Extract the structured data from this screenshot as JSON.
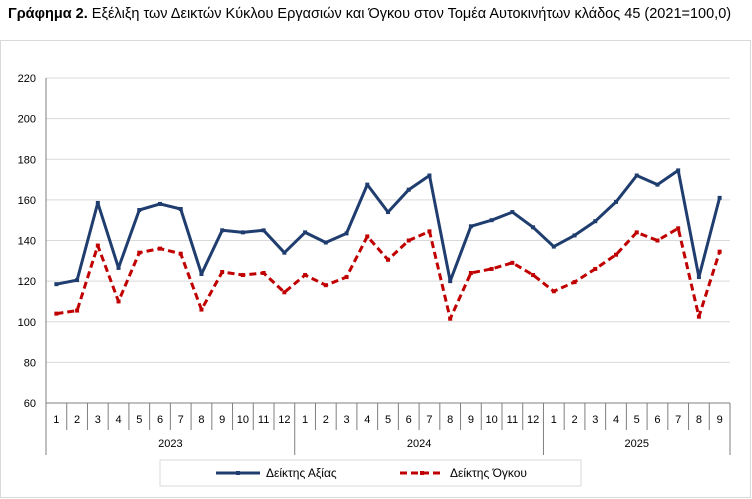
{
  "title": {
    "prefix": "Γράφημα 2.",
    "text": "Εξέλιξη των Δεικτών Κύκλου Εργασιών και Όγκου στον Τομέα Αυτοκινήτων κλάδος 45 (2021=100,0)"
  },
  "chart_data": {
    "type": "line",
    "title": "Γράφημα 2. Εξέλιξη των Δεικτών Κύκλου Εργασιών και Όγκου στον Τομέα Αυτοκινήτων κλάδος 45 (2021=100,0)",
    "xlabel": "",
    "ylabel": "",
    "ylim": [
      60,
      220
    ],
    "yticks": [
      "60",
      "80",
      "100",
      "120",
      "140",
      "160",
      "180",
      "200",
      "220"
    ],
    "grid": true,
    "legend": "bottom",
    "categories": [
      "1",
      "2",
      "3",
      "4",
      "5",
      "6",
      "7",
      "8",
      "9",
      "10",
      "11",
      "12",
      "1",
      "2",
      "3",
      "4",
      "5",
      "6",
      "7",
      "8",
      "9",
      "10",
      "11",
      "12",
      "1",
      "2",
      "3",
      "4",
      "5",
      "6",
      "7",
      "8",
      "9"
    ],
    "years": [
      {
        "label": "2023",
        "months": 12
      },
      {
        "label": "2024",
        "months": 12
      },
      {
        "label": "2025",
        "months": 9
      }
    ],
    "series": [
      {
        "name": "Δείκτης Αξίας",
        "color": "#1f3d6e",
        "style": "solid",
        "values": [
          118.5,
          120.5,
          158.5,
          126.5,
          155,
          158,
          155.5,
          123.5,
          145,
          144,
          145,
          134,
          144,
          139,
          143.5,
          167.5,
          154,
          165,
          172,
          120,
          147,
          150,
          154,
          146.5,
          137,
          142.5,
          149.5,
          159,
          172,
          167.5,
          174.5,
          122,
          161
        ]
      },
      {
        "name": "Δείκτης Όγκου",
        "color": "#c00000",
        "style": "dashed",
        "values": [
          104,
          105.5,
          137.5,
          110,
          134,
          136,
          133.5,
          106,
          124.5,
          123,
          124,
          114.5,
          123,
          118,
          122,
          142,
          130.5,
          140,
          144.5,
          101.5,
          124,
          126,
          129,
          123,
          115,
          119.5,
          126,
          133,
          144,
          140,
          146,
          102.5,
          134.5
        ]
      }
    ]
  }
}
